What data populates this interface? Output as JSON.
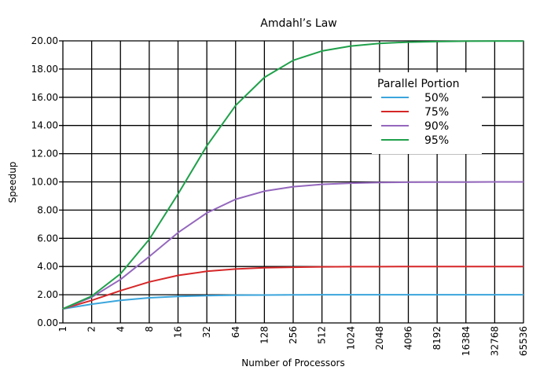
{
  "chart_data": {
    "type": "line",
    "title": "Amdahl’s Law",
    "xlabel": "Number of Processors",
    "ylabel": "Speedup",
    "x_scale": "log2",
    "x": [
      1,
      2,
      4,
      8,
      16,
      32,
      64,
      128,
      256,
      512,
      1024,
      2048,
      4096,
      8192,
      16384,
      32768,
      65536
    ],
    "x_tick_labels": [
      "1",
      "2",
      "4",
      "8",
      "16",
      "32",
      "64",
      "128",
      "256",
      "512",
      "1024",
      "2048",
      "4096",
      "8192",
      "16384",
      "32768",
      "65536"
    ],
    "ylim": [
      0,
      20
    ],
    "y_ticks": [
      0,
      2,
      4,
      6,
      8,
      10,
      12,
      14,
      16,
      18,
      20
    ],
    "y_tick_labels": [
      "0.00",
      "2.00",
      "4.00",
      "6.00",
      "8.00",
      "10.00",
      "12.00",
      "14.00",
      "16.00",
      "18.00",
      "20.00"
    ],
    "grid": true,
    "legend": {
      "title": "Parallel Portion",
      "position": "top-right"
    },
    "series": [
      {
        "name": "50%",
        "color": "#3aa5dc",
        "values": [
          1.0,
          1.33,
          1.6,
          1.78,
          1.88,
          1.94,
          1.97,
          1.98,
          1.99,
          2.0,
          2.0,
          2.0,
          2.0,
          2.0,
          2.0,
          2.0,
          2.0
        ]
      },
      {
        "name": "75%",
        "color": "#d62728",
        "values": [
          1.0,
          1.6,
          2.29,
          2.91,
          3.37,
          3.66,
          3.82,
          3.91,
          3.95,
          3.98,
          3.99,
          3.99,
          4.0,
          4.0,
          4.0,
          4.0,
          4.0
        ]
      },
      {
        "name": "90%",
        "color": "#9467bd",
        "values": [
          1.0,
          1.82,
          3.08,
          4.71,
          6.4,
          7.8,
          8.77,
          9.34,
          9.66,
          9.83,
          9.91,
          9.96,
          9.98,
          9.99,
          9.99,
          10.0,
          10.0
        ]
      },
      {
        "name": "95%",
        "color": "#1fa04a",
        "values": [
          1.0,
          1.9,
          3.48,
          5.93,
          9.14,
          12.55,
          15.42,
          17.41,
          18.62,
          19.28,
          19.63,
          19.82,
          19.91,
          19.95,
          19.98,
          19.99,
          19.99
        ]
      }
    ]
  }
}
